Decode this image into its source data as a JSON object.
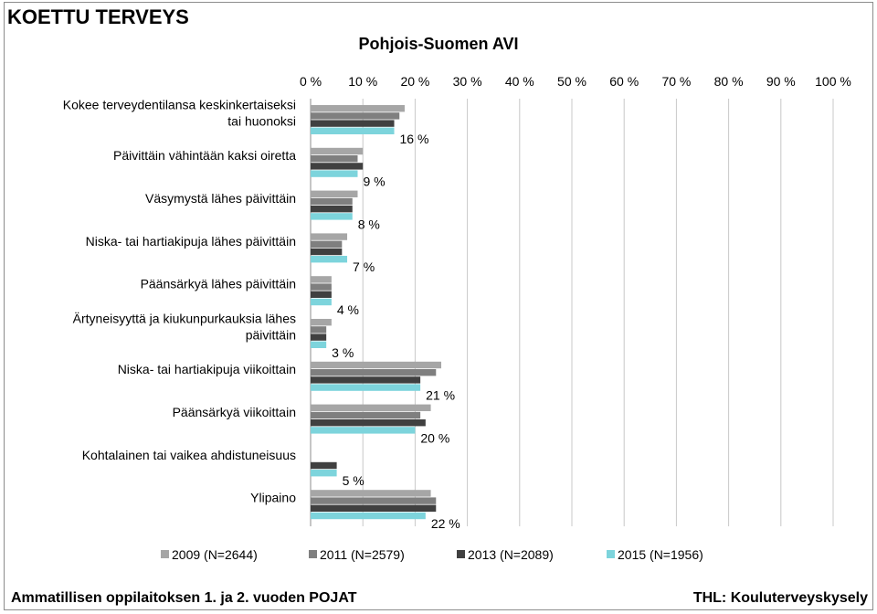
{
  "page": {
    "title": "KOETTU TERVEYS",
    "footer_left": "Ammatillisen oppilaitoksen 1. ja 2. vuoden POJAT",
    "footer_right": "THL: Kouluterveyskysely"
  },
  "chart_data": {
    "type": "bar",
    "orientation": "horizontal",
    "title": "Pohjois-Suomen AVI",
    "xlim": [
      0,
      100
    ],
    "x_ticks": [
      "0 %",
      "10 %",
      "20 %",
      "30 %",
      "40 %",
      "50 %",
      "60 %",
      "70 %",
      "80 %",
      "90 %",
      "100 %"
    ],
    "grid": true,
    "legend_position": "bottom",
    "categories": [
      [
        "Kokee terveydentilansa keskinkertaiseksi",
        "tai huonoksi"
      ],
      [
        "Päivittäin vähintään kaksi oiretta"
      ],
      [
        "Väsymystä lähes päivittäin"
      ],
      [
        "Niska- tai hartiakipuja lähes päivittäin"
      ],
      [
        "Päänsärkyä lähes päivittäin"
      ],
      [
        "Ärtyneisyyttä ja kiukunpurkauksia lähes",
        "päivittäin"
      ],
      [
        "Niska- tai hartiakipuja viikoittain"
      ],
      [
        "Päänsärkyä viikoittain"
      ],
      [
        "Kohtalainen tai vaikea ahdistuneisuus"
      ],
      [
        "Ylipaino"
      ]
    ],
    "series": [
      {
        "name": "2009 (N=2644)",
        "color": "#a6a6a6",
        "values": [
          18,
          10,
          9,
          7,
          4,
          4,
          25,
          23,
          null,
          23
        ]
      },
      {
        "name": "2011 (N=2579)",
        "color": "#7f7f7f",
        "values": [
          17,
          9,
          8,
          6,
          4,
          3,
          24,
          21,
          null,
          24
        ]
      },
      {
        "name": "2013 (N=2089)",
        "color": "#404040",
        "values": [
          16,
          10,
          8,
          6,
          4,
          3,
          21,
          22,
          5,
          24
        ]
      },
      {
        "name": "2015 (N=1956)",
        "color": "#7dd4dc",
        "values": [
          16,
          9,
          8,
          7,
          4,
          3,
          21,
          20,
          5,
          22
        ]
      }
    ],
    "data_labels": [
      "16 %",
      "9 %",
      "8 %",
      "7 %",
      "4 %",
      "3 %",
      "21 %",
      "20 %",
      "5 %",
      "22 %"
    ]
  }
}
